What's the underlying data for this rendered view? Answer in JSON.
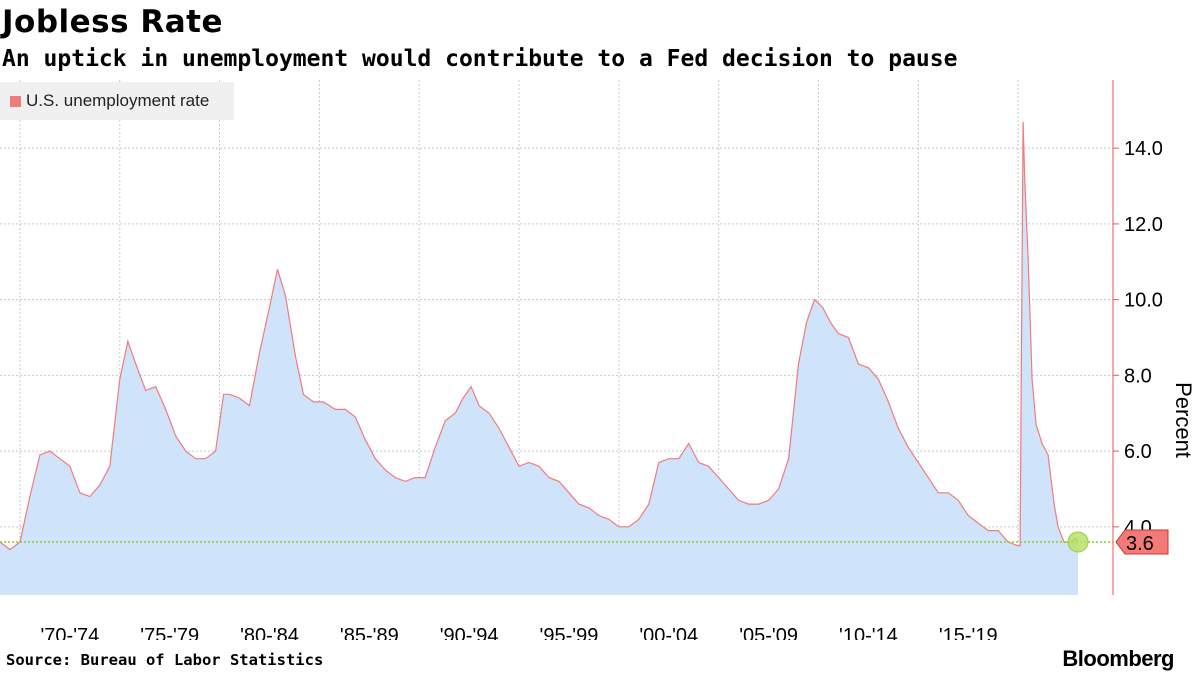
{
  "header": {
    "title": "Jobless Rate",
    "subtitle": "An uptick in unemployment would contribute to a Fed decision to pause"
  },
  "footer": {
    "source": "Source: Bureau of Labor Statistics",
    "brand": "Bloomberg"
  },
  "colors": {
    "line": "#f07b7b",
    "area": "#cfe4fb",
    "axis": "#e8746f",
    "last_value_box": "#f47a7a",
    "marker": "#b8e06a",
    "reference_line": "#8ac926",
    "grid": "#c8c8c8"
  },
  "chart_data": {
    "type": "area",
    "title": "Jobless Rate",
    "subtitle": "An uptick in unemployment would contribute to a Fed decision to pause",
    "xlabel": "",
    "ylabel": "Percent",
    "ylim": [
      2.2,
      15.8
    ],
    "xlim": [
      1969.0,
      2023.5
    ],
    "yticks": [
      4.0,
      6.0,
      8.0,
      10.0,
      12.0,
      14.0
    ],
    "ytick_labels": [
      "4.0",
      "6.0",
      "8.0",
      "10.0",
      "12.0",
      "14.0"
    ],
    "xtick_labels": [
      "'70-'74",
      "'75-'79",
      "'80-'84",
      "'85-'89",
      "'90-'94",
      "'95-'99",
      "'00-'04",
      "'05-'09",
      "'10-'14",
      "'15-'19"
    ],
    "xtick_starts": [
      1970,
      1975,
      1980,
      1985,
      1990,
      1995,
      2000,
      2005,
      2010,
      2015,
      2020
    ],
    "grid": true,
    "legend": {
      "position": "top-left",
      "entries": [
        "U.S. unemployment rate"
      ]
    },
    "last_value": 3.6,
    "last_value_label": "3.6",
    "series": [
      {
        "name": "U.S. unemployment rate",
        "x": [
          1969.0,
          1969.5,
          1970.0,
          1970.5,
          1971.0,
          1971.5,
          1972.0,
          1972.5,
          1973.0,
          1973.5,
          1974.0,
          1974.5,
          1975.0,
          1975.4,
          1975.8,
          1976.3,
          1976.8,
          1977.3,
          1977.8,
          1978.3,
          1978.8,
          1979.3,
          1979.8,
          1980.2,
          1980.5,
          1981.0,
          1981.5,
          1982.0,
          1982.5,
          1982.9,
          1983.3,
          1983.8,
          1984.2,
          1984.7,
          1985.2,
          1985.8,
          1986.3,
          1986.8,
          1987.3,
          1987.8,
          1988.3,
          1988.8,
          1989.3,
          1989.8,
          1990.3,
          1990.8,
          1991.3,
          1991.8,
          1992.2,
          1992.6,
          1993.0,
          1993.5,
          1994.0,
          1994.5,
          1995.0,
          1995.5,
          1996.0,
          1996.5,
          1997.0,
          1997.5,
          1998.0,
          1998.5,
          1999.0,
          1999.5,
          2000.0,
          2000.5,
          2001.0,
          2001.5,
          2002.0,
          2002.5,
          2003.0,
          2003.5,
          2004.0,
          2004.5,
          2005.0,
          2005.5,
          2006.0,
          2006.5,
          2007.0,
          2007.5,
          2008.0,
          2008.5,
          2009.0,
          2009.4,
          2009.8,
          2010.2,
          2010.6,
          2011.0,
          2011.5,
          2012.0,
          2012.5,
          2013.0,
          2013.5,
          2014.0,
          2014.5,
          2015.0,
          2015.5,
          2016.0,
          2016.5,
          2017.0,
          2017.5,
          2018.0,
          2018.5,
          2019.0,
          2019.5,
          2020.0,
          2020.1,
          2020.25,
          2020.33,
          2020.5,
          2020.7,
          2020.9,
          2021.2,
          2021.5,
          2021.8,
          2022.0,
          2022.3,
          2022.6,
          2022.9,
          2023.0
        ],
        "values": [
          3.6,
          3.4,
          3.6,
          4.8,
          5.9,
          6.0,
          5.8,
          5.6,
          4.9,
          4.8,
          5.1,
          5.6,
          7.9,
          8.9,
          8.3,
          7.6,
          7.7,
          7.1,
          6.4,
          6.0,
          5.8,
          5.8,
          6.0,
          7.5,
          7.5,
          7.4,
          7.2,
          8.6,
          9.8,
          10.8,
          10.1,
          8.5,
          7.5,
          7.3,
          7.3,
          7.1,
          7.1,
          6.9,
          6.3,
          5.8,
          5.5,
          5.3,
          5.2,
          5.3,
          5.3,
          6.1,
          6.8,
          7.0,
          7.4,
          7.7,
          7.2,
          7.0,
          6.6,
          6.1,
          5.6,
          5.7,
          5.6,
          5.3,
          5.2,
          4.9,
          4.6,
          4.5,
          4.3,
          4.2,
          4.0,
          4.0,
          4.2,
          4.6,
          5.7,
          5.8,
          5.8,
          6.2,
          5.7,
          5.6,
          5.3,
          5.0,
          4.7,
          4.6,
          4.6,
          4.7,
          5.0,
          5.8,
          8.3,
          9.4,
          10.0,
          9.8,
          9.4,
          9.1,
          9.0,
          8.3,
          8.2,
          7.9,
          7.3,
          6.6,
          6.1,
          5.7,
          5.3,
          4.9,
          4.9,
          4.7,
          4.3,
          4.1,
          3.9,
          3.9,
          3.6,
          3.5,
          3.5,
          14.7,
          13.2,
          11.1,
          7.9,
          6.7,
          6.2,
          5.9,
          4.6,
          4.0,
          3.6,
          3.6,
          3.7,
          3.6
        ]
      }
    ]
  }
}
